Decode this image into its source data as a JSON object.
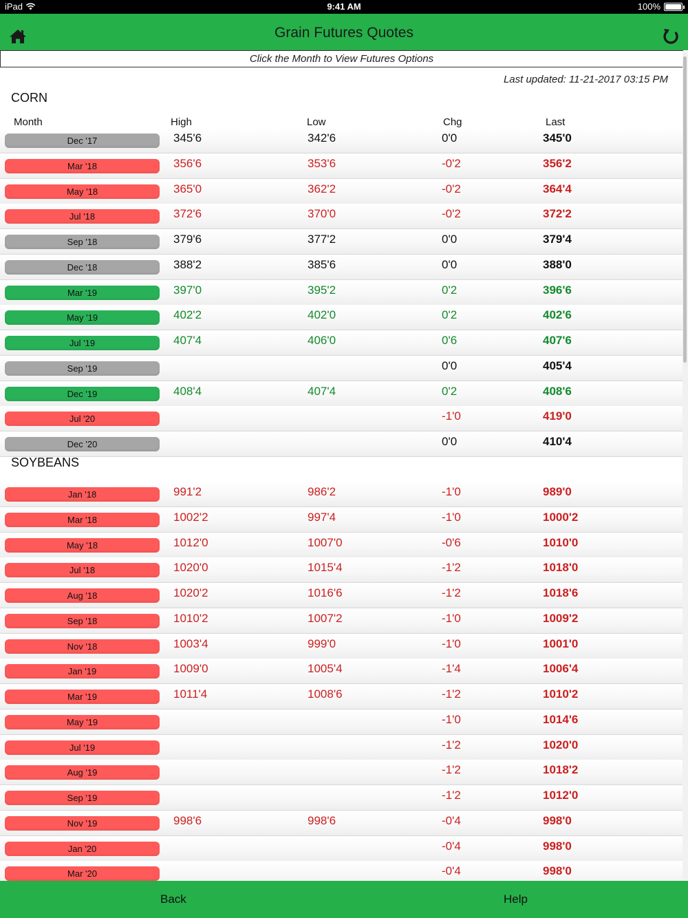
{
  "status_bar": {
    "device": "iPad",
    "time": "9:41 AM",
    "battery": "100%"
  },
  "header": {
    "title": "Grain Futures Quotes",
    "home_icon": "home-icon",
    "refresh_icon": "refresh-icon"
  },
  "hint": "Click the Month to View Futures Options",
  "last_updated": "Last updated: 11-21-2017 03:15 PM",
  "columns": {
    "month": "Month",
    "high": "High",
    "low": "Low",
    "chg": "Chg",
    "last": "Last"
  },
  "colors": {
    "green_bar": "#25b04a",
    "up": "#138a2c",
    "down": "#cc1f1f",
    "btn_red": "#ff5a5a",
    "btn_green": "#29b158",
    "btn_gray": "#a6a6a6"
  },
  "sections": [
    {
      "title": "CORN",
      "rows": [
        {
          "month": "Dec '17",
          "high": "345'6",
          "low": "342'6",
          "chg": "0'0",
          "last": "345'0",
          "trend": "flat"
        },
        {
          "month": "Mar '18",
          "high": "356'6",
          "low": "353'6",
          "chg": "-0'2",
          "last": "356'2",
          "trend": "down"
        },
        {
          "month": "May '18",
          "high": "365'0",
          "low": "362'2",
          "chg": "-0'2",
          "last": "364'4",
          "trend": "down"
        },
        {
          "month": "Jul '18",
          "high": "372'6",
          "low": "370'0",
          "chg": "-0'2",
          "last": "372'2",
          "trend": "down"
        },
        {
          "month": "Sep '18",
          "high": "379'6",
          "low": "377'2",
          "chg": "0'0",
          "last": "379'4",
          "trend": "flat"
        },
        {
          "month": "Dec '18",
          "high": "388'2",
          "low": "385'6",
          "chg": "0'0",
          "last": "388'0",
          "trend": "flat"
        },
        {
          "month": "Mar '19",
          "high": "397'0",
          "low": "395'2",
          "chg": "0'2",
          "last": "396'6",
          "trend": "up"
        },
        {
          "month": "May '19",
          "high": "402'2",
          "low": "402'0",
          "chg": "0'2",
          "last": "402'6",
          "trend": "up"
        },
        {
          "month": "Jul '19",
          "high": "407'4",
          "low": "406'0",
          "chg": "0'6",
          "last": "407'6",
          "trend": "up"
        },
        {
          "month": "Sep '19",
          "high": "",
          "low": "",
          "chg": "0'0",
          "last": "405'4",
          "trend": "flat"
        },
        {
          "month": "Dec '19",
          "high": "408'4",
          "low": "407'4",
          "chg": "0'2",
          "last": "408'6",
          "trend": "up"
        },
        {
          "month": "Jul '20",
          "high": "",
          "low": "",
          "chg": "-1'0",
          "last": "419'0",
          "trend": "down"
        },
        {
          "month": "Dec '20",
          "high": "",
          "low": "",
          "chg": "0'0",
          "last": "410'4",
          "trend": "flat"
        }
      ]
    },
    {
      "title": "SOYBEANS",
      "rows": [
        {
          "month": "Jan '18",
          "high": "991'2",
          "low": "986'2",
          "chg": "-1'0",
          "last": "989'0",
          "trend": "down"
        },
        {
          "month": "Mar '18",
          "high": "1002'2",
          "low": "997'4",
          "chg": "-1'0",
          "last": "1000'2",
          "trend": "down"
        },
        {
          "month": "May '18",
          "high": "1012'0",
          "low": "1007'0",
          "chg": "-0'6",
          "last": "1010'0",
          "trend": "down"
        },
        {
          "month": "Jul '18",
          "high": "1020'0",
          "low": "1015'4",
          "chg": "-1'2",
          "last": "1018'0",
          "trend": "down"
        },
        {
          "month": "Aug '18",
          "high": "1020'2",
          "low": "1016'6",
          "chg": "-1'2",
          "last": "1018'6",
          "trend": "down"
        },
        {
          "month": "Sep '18",
          "high": "1010'2",
          "low": "1007'2",
          "chg": "-1'0",
          "last": "1009'2",
          "trend": "down"
        },
        {
          "month": "Nov '18",
          "high": "1003'4",
          "low": "999'0",
          "chg": "-1'0",
          "last": "1001'0",
          "trend": "down"
        },
        {
          "month": "Jan '19",
          "high": "1009'0",
          "low": "1005'4",
          "chg": "-1'4",
          "last": "1006'4",
          "trend": "down"
        },
        {
          "month": "Mar '19",
          "high": "1011'4",
          "low": "1008'6",
          "chg": "-1'2",
          "last": "1010'2",
          "trend": "down"
        },
        {
          "month": "May '19",
          "high": "",
          "low": "",
          "chg": "-1'0",
          "last": "1014'6",
          "trend": "down"
        },
        {
          "month": "Jul '19",
          "high": "",
          "low": "",
          "chg": "-1'2",
          "last": "1020'0",
          "trend": "down"
        },
        {
          "month": "Aug '19",
          "high": "",
          "low": "",
          "chg": "-1'2",
          "last": "1018'2",
          "trend": "down"
        },
        {
          "month": "Sep '19",
          "high": "",
          "low": "",
          "chg": "-1'2",
          "last": "1012'0",
          "trend": "down"
        },
        {
          "month": "Nov '19",
          "high": "998'6",
          "low": "998'6",
          "chg": "-0'4",
          "last": "998'0",
          "trend": "down"
        },
        {
          "month": "Jan '20",
          "high": "",
          "low": "",
          "chg": "-0'4",
          "last": "998'0",
          "trend": "down"
        },
        {
          "month": "Mar '20",
          "high": "",
          "low": "",
          "chg": "-0'4",
          "last": "998'0",
          "trend": "down"
        }
      ]
    }
  ],
  "footer": {
    "back": "Back",
    "help": "Help"
  }
}
